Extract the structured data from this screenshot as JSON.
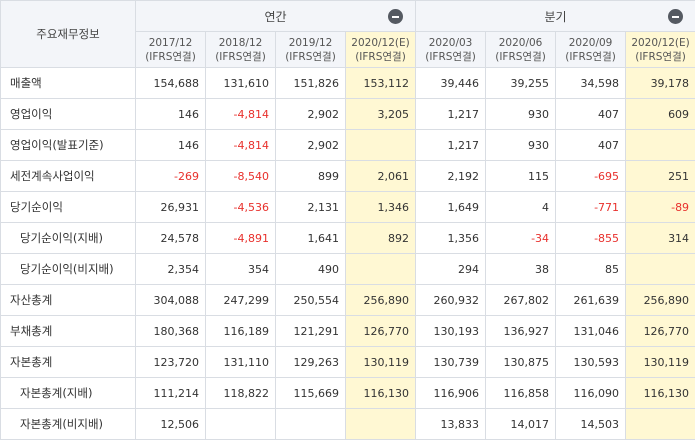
{
  "table": {
    "corner_label": "주요재무정보",
    "groups": {
      "annual": "연간",
      "quarterly": "분기"
    },
    "columns": [
      {
        "period": "2017/12",
        "basis": "(IFRS연결)",
        "estimate": false
      },
      {
        "period": "2018/12",
        "basis": "(IFRS연결)",
        "estimate": false
      },
      {
        "period": "2019/12",
        "basis": "(IFRS연결)",
        "estimate": false
      },
      {
        "period": "2020/12(E)",
        "basis": "(IFRS연결)",
        "estimate": true
      },
      {
        "period": "2020/03",
        "basis": "(IFRS연결)",
        "estimate": false
      },
      {
        "period": "2020/06",
        "basis": "(IFRS연결)",
        "estimate": false
      },
      {
        "period": "2020/09",
        "basis": "(IFRS연결)",
        "estimate": false
      },
      {
        "period": "2020/12(E)",
        "basis": "(IFRS연결)",
        "estimate": true
      }
    ],
    "rows": [
      {
        "label": "매출액",
        "indent": false,
        "values": [
          "154,688",
          "131,610",
          "151,826",
          "153,112",
          "39,446",
          "39,255",
          "34,598",
          "39,178"
        ]
      },
      {
        "label": "영업이익",
        "indent": false,
        "values": [
          "146",
          "-4,814",
          "2,902",
          "3,205",
          "1,217",
          "930",
          "407",
          "609"
        ]
      },
      {
        "label": "영업이익(발표기준)",
        "indent": false,
        "values": [
          "146",
          "-4,814",
          "2,902",
          "",
          "1,217",
          "930",
          "407",
          ""
        ]
      },
      {
        "label": "세전계속사업이익",
        "indent": false,
        "values": [
          "-269",
          "-8,540",
          "899",
          "2,061",
          "2,192",
          "115",
          "-695",
          "251"
        ]
      },
      {
        "label": "당기순이익",
        "indent": false,
        "values": [
          "26,931",
          "-4,536",
          "2,131",
          "1,346",
          "1,649",
          "4",
          "-771",
          "-89"
        ]
      },
      {
        "label": "당기순이익(지배)",
        "indent": true,
        "values": [
          "24,578",
          "-4,891",
          "1,641",
          "892",
          "1,356",
          "-34",
          "-855",
          "314"
        ]
      },
      {
        "label": "당기순이익(비지배)",
        "indent": true,
        "values": [
          "2,354",
          "354",
          "490",
          "",
          "294",
          "38",
          "85",
          ""
        ]
      },
      {
        "label": "자산총계",
        "indent": false,
        "values": [
          "304,088",
          "247,299",
          "250,554",
          "256,890",
          "260,932",
          "267,802",
          "261,639",
          "256,890"
        ]
      },
      {
        "label": "부채총계",
        "indent": false,
        "values": [
          "180,368",
          "116,189",
          "121,291",
          "126,770",
          "130,193",
          "136,927",
          "131,046",
          "126,770"
        ]
      },
      {
        "label": "자본총계",
        "indent": false,
        "values": [
          "123,720",
          "131,110",
          "129,263",
          "130,119",
          "130,739",
          "130,875",
          "130,593",
          "130,119"
        ]
      },
      {
        "label": "자본총계(지배)",
        "indent": true,
        "values": [
          "111,214",
          "118,822",
          "115,669",
          "116,130",
          "116,906",
          "116,858",
          "116,090",
          "116,130"
        ]
      },
      {
        "label": "자본총계(비지배)",
        "indent": true,
        "values": [
          "12,506",
          "",
          "",
          "",
          "13,833",
          "14,017",
          "14,503",
          ""
        ]
      }
    ]
  },
  "icons": {
    "collapse": "minus-circle-icon"
  },
  "colors": {
    "negative": "#e8302c",
    "estimate_bg": "#fff8d3",
    "header_bg": "#f3f5f9"
  }
}
